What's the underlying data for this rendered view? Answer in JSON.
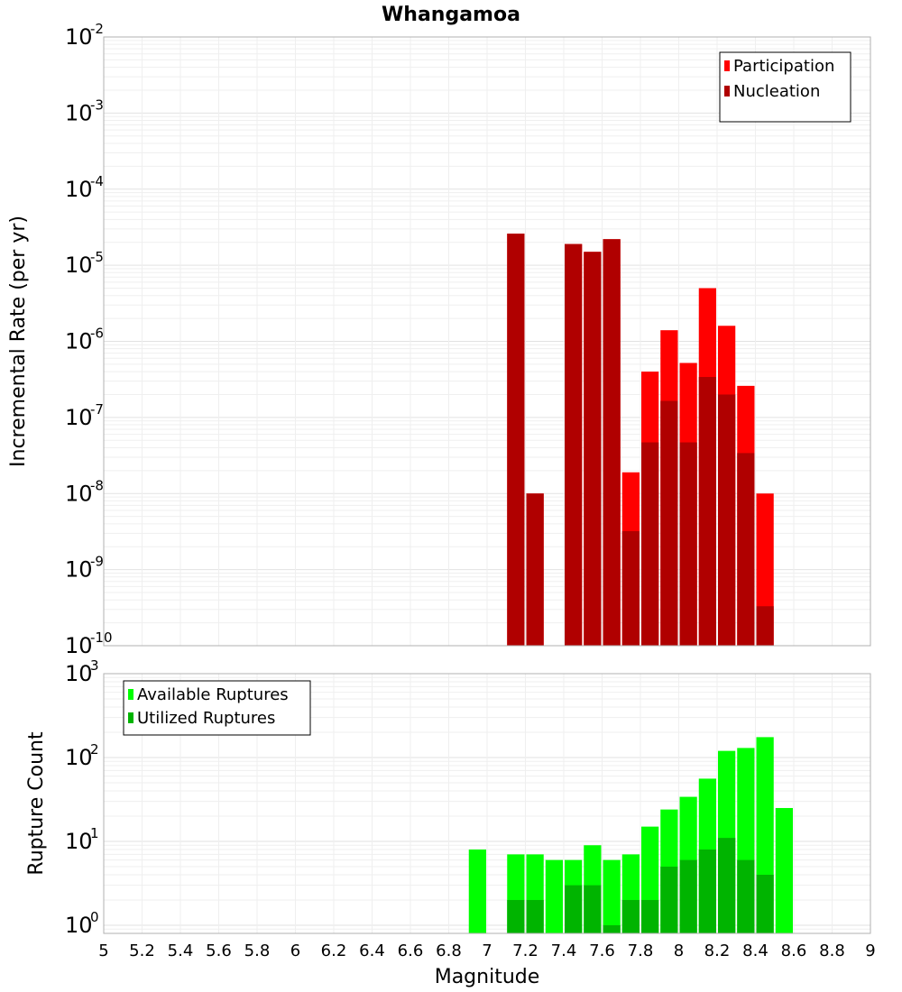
{
  "chart_data": {
    "title": "Whangamoa",
    "xlabel": "Magnitude",
    "xlim": [
      5,
      9
    ],
    "xticks": [
      "5",
      "5.2",
      "5.4",
      "5.6",
      "5.8",
      "6",
      "6.2",
      "6.4",
      "6.6",
      "6.8",
      "7",
      "7.2",
      "7.4",
      "7.6",
      "7.8",
      "8",
      "8.2",
      "8.4",
      "8.6",
      "8.8",
      "9"
    ],
    "bin_width": 0.1,
    "grid": true,
    "panels": [
      {
        "type": "bar",
        "ylabel": "Incremental Rate (per yr)",
        "yscale": "log",
        "ylim": [
          1e-10,
          0.01
        ],
        "ytick_base": "10",
        "ytick_exponents": [
          "-10",
          "-9",
          "-8",
          "-7",
          "-6",
          "-5",
          "-4",
          "-3",
          "-2"
        ],
        "legend_position": "top-right",
        "series": [
          {
            "name": "Participation",
            "color": "#ff0000",
            "points": [
              {
                "x": 7.15,
                "y": 2.6e-05
              },
              {
                "x": 7.25,
                "y": 1e-08
              },
              {
                "x": 7.45,
                "y": 1.9e-05
              },
              {
                "x": 7.55,
                "y": 1.5e-05
              },
              {
                "x": 7.65,
                "y": 2.2e-05
              },
              {
                "x": 7.75,
                "y": 1.9e-08
              },
              {
                "x": 7.85,
                "y": 4e-07
              },
              {
                "x": 7.95,
                "y": 1.4e-06
              },
              {
                "x": 8.05,
                "y": 5.2e-07
              },
              {
                "x": 8.15,
                "y": 5e-06
              },
              {
                "x": 8.25,
                "y": 1.6e-06
              },
              {
                "x": 8.35,
                "y": 2.6e-07
              },
              {
                "x": 8.45,
                "y": 1e-08
              }
            ]
          },
          {
            "name": "Nucleation",
            "color": "#b00000",
            "points": [
              {
                "x": 7.15,
                "y": 2.6e-05
              },
              {
                "x": 7.25,
                "y": 1e-08
              },
              {
                "x": 7.45,
                "y": 1.9e-05
              },
              {
                "x": 7.55,
                "y": 1.5e-05
              },
              {
                "x": 7.65,
                "y": 2.2e-05
              },
              {
                "x": 7.75,
                "y": 3.2e-09
              },
              {
                "x": 7.85,
                "y": 4.7e-08
              },
              {
                "x": 7.95,
                "y": 1.65e-07
              },
              {
                "x": 8.05,
                "y": 4.7e-08
              },
              {
                "x": 8.15,
                "y": 3.4e-07
              },
              {
                "x": 8.25,
                "y": 2e-07
              },
              {
                "x": 8.35,
                "y": 3.4e-08
              },
              {
                "x": 8.45,
                "y": 3.3e-10
              }
            ]
          }
        ]
      },
      {
        "type": "bar",
        "ylabel": "Rupture Count",
        "yscale": "log",
        "ylim": [
          0.8,
          1000
        ],
        "ytick_base": "10",
        "ytick_exponents": [
          "0",
          "1",
          "2",
          "3"
        ],
        "legend_position": "top-left",
        "series": [
          {
            "name": "Available Ruptures",
            "color": "#00ff00",
            "points": [
              {
                "x": 6.95,
                "y": 8
              },
              {
                "x": 7.15,
                "y": 7
              },
              {
                "x": 7.25,
                "y": 7
              },
              {
                "x": 7.35,
                "y": 6
              },
              {
                "x": 7.45,
                "y": 6
              },
              {
                "x": 7.55,
                "y": 9
              },
              {
                "x": 7.65,
                "y": 6
              },
              {
                "x": 7.75,
                "y": 7
              },
              {
                "x": 7.85,
                "y": 15
              },
              {
                "x": 7.95,
                "y": 24
              },
              {
                "x": 8.05,
                "y": 34
              },
              {
                "x": 8.15,
                "y": 56
              },
              {
                "x": 8.25,
                "y": 120
              },
              {
                "x": 8.35,
                "y": 130
              },
              {
                "x": 8.45,
                "y": 175
              },
              {
                "x": 8.55,
                "y": 25
              }
            ]
          },
          {
            "name": "Utilized Ruptures",
            "color": "#00b400",
            "points": [
              {
                "x": 7.15,
                "y": 2
              },
              {
                "x": 7.25,
                "y": 2
              },
              {
                "x": 7.45,
                "y": 3
              },
              {
                "x": 7.55,
                "y": 3
              },
              {
                "x": 7.65,
                "y": 1
              },
              {
                "x": 7.75,
                "y": 2
              },
              {
                "x": 7.85,
                "y": 2
              },
              {
                "x": 7.95,
                "y": 5
              },
              {
                "x": 8.05,
                "y": 6
              },
              {
                "x": 8.15,
                "y": 8
              },
              {
                "x": 8.25,
                "y": 11
              },
              {
                "x": 8.35,
                "y": 6
              },
              {
                "x": 8.45,
                "y": 4
              }
            ]
          }
        ]
      }
    ]
  }
}
